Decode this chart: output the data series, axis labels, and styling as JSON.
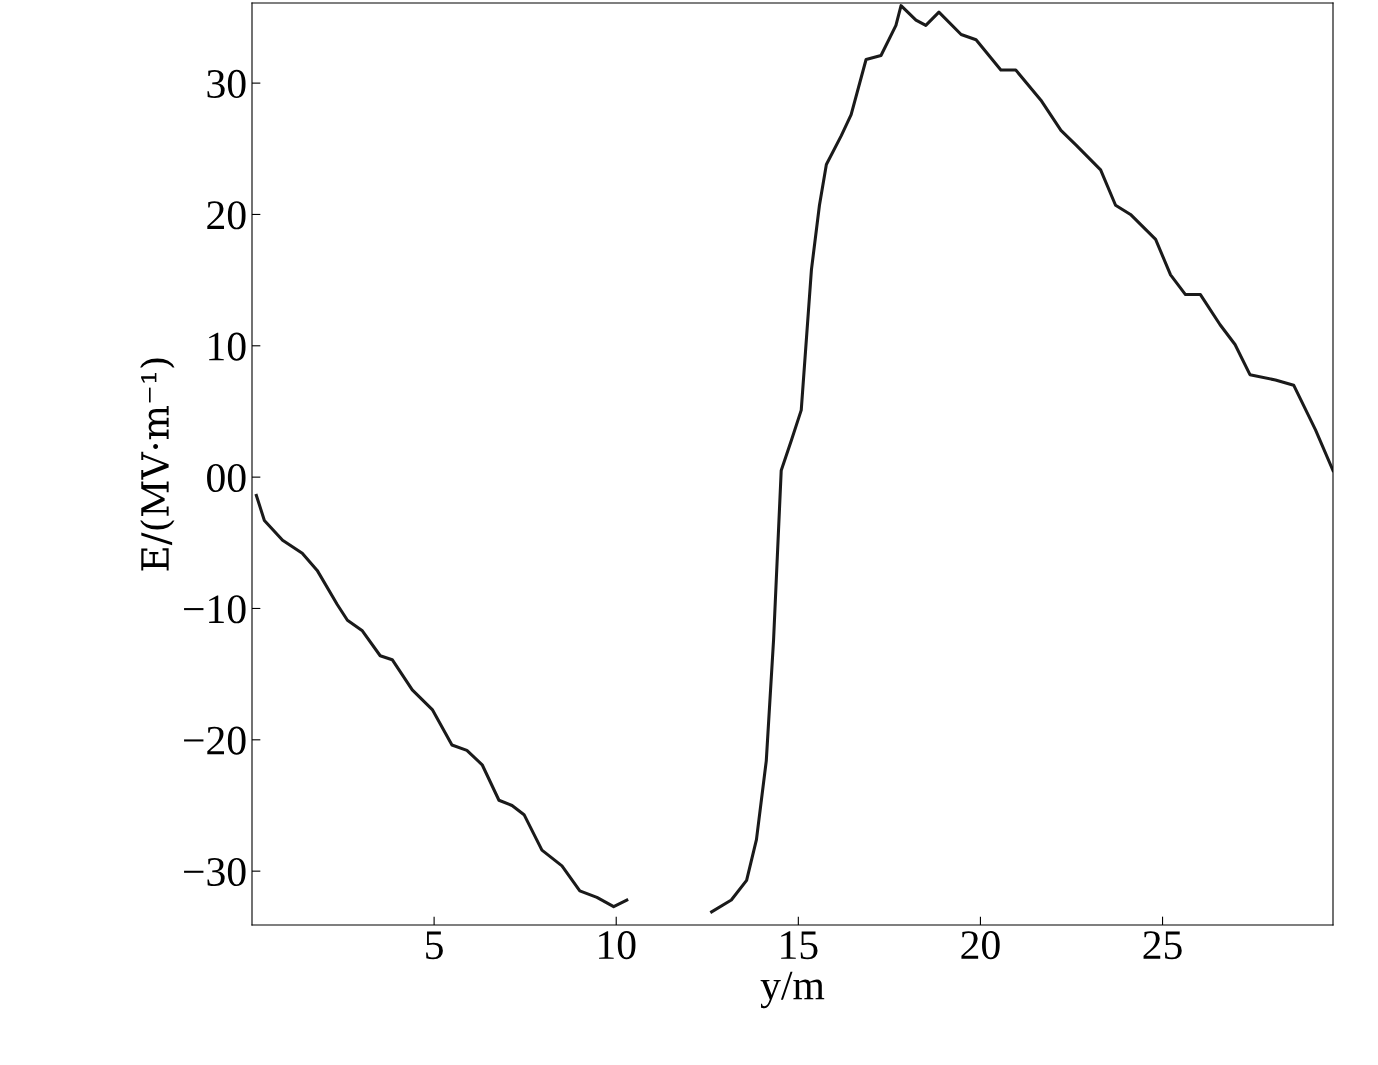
{
  "chart_data": {
    "type": "line",
    "xlabel": "y/m",
    "ylabel": "E/(MV·m⁻¹)",
    "xlim": [
      0,
      29.68
    ],
    "ylim": [
      -34.1,
      36.1
    ],
    "xticks": [
      5,
      10,
      15,
      20,
      25
    ],
    "yticks": [
      -30,
      -20,
      -10,
      {
        "value": 0,
        "label": "00"
      },
      10,
      20,
      30
    ],
    "grid": false,
    "legend": false,
    "marker": "none",
    "line_style": "solid",
    "series": [
      {
        "color": "#1a1a1a",
        "x": [
          0.12,
          0.34,
          0.84,
          1.38,
          1.79,
          2.34,
          2.62,
          3.03,
          3.52,
          3.85,
          4.4,
          4.95,
          5.49,
          5.9,
          6.32,
          6.78,
          7.14,
          7.47,
          7.96,
          8.51,
          9.0,
          9.47,
          9.93,
          10.29,
          10.7,
          11.25,
          11.66,
          12.21,
          12.62,
          13.16,
          13.58,
          13.85,
          14.12,
          14.32,
          14.53,
          14.81,
          15.08,
          15.36,
          15.58,
          15.77,
          16.18,
          16.45,
          16.86,
          17.27,
          17.68,
          17.82,
          18.23,
          18.5,
          18.86,
          19.47,
          19.88,
          20.56,
          20.97,
          21.66,
          22.21,
          22.62,
          23.3,
          23.71,
          24.12,
          24.81,
          25.22,
          25.63,
          26.04,
          26.58,
          26.99,
          27.4,
          28.1,
          28.6,
          29.2,
          29.68
        ],
        "values": [
          -1.4,
          -3.3,
          -4.8,
          -5.8,
          -7.1,
          -9.7,
          -10.9,
          -11.7,
          -13.6,
          -13.9,
          -16.2,
          -17.7,
          -20.4,
          -20.8,
          -21.9,
          -24.6,
          -25.0,
          -25.7,
          -28.4,
          -29.6,
          -31.5,
          -32.0,
          -32.7,
          -32.2,
          null,
          null,
          null,
          null,
          -33.1,
          -32.2,
          -30.7,
          -27.6,
          -21.6,
          -12.4,
          0.5,
          2.8,
          5.1,
          15.8,
          20.7,
          23.8,
          26.0,
          27.6,
          31.8,
          32.1,
          34.4,
          35.9,
          34.8,
          34.4,
          35.4,
          33.7,
          33.3,
          31.0,
          31.0,
          28.7,
          26.4,
          25.3,
          23.4,
          20.7,
          20.0,
          18.1,
          15.4,
          13.9,
          13.9,
          11.6,
          10.1,
          7.8,
          7.4,
          7.0,
          3.6,
          0.5
        ]
      }
    ]
  }
}
